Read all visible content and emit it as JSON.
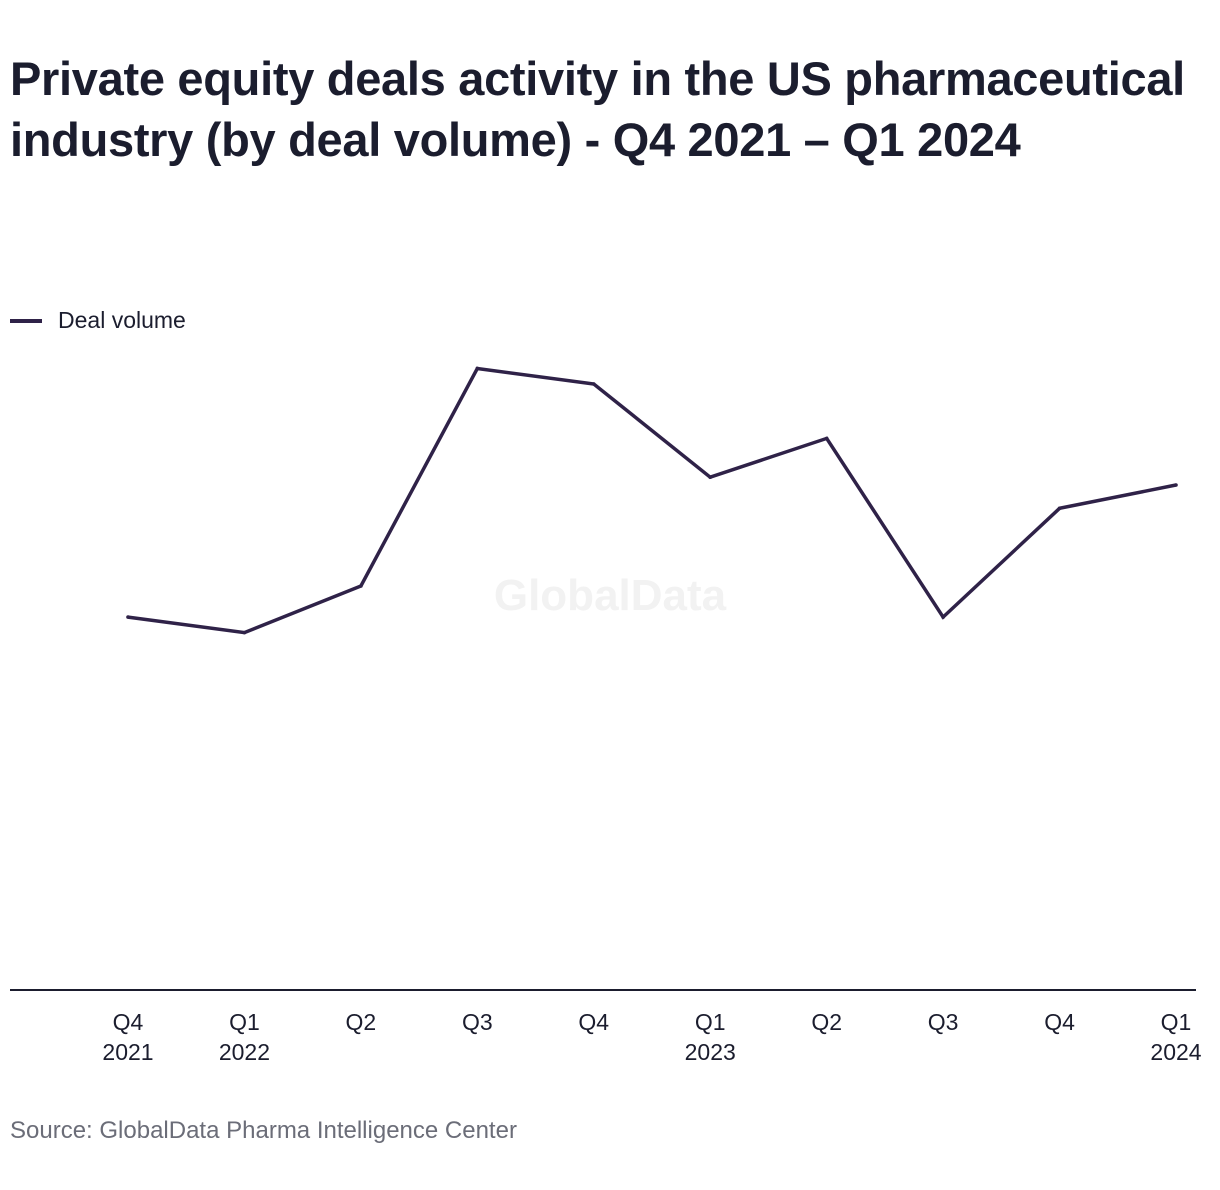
{
  "title": "Private equity deals activity in the US pharmaceutical industry (by deal volume) - Q4 2021 – Q1 2024",
  "legend_label": "Deal volume",
  "watermark": "GlobalData",
  "source": "Source: GlobalData Pharma Intelligence Center",
  "colors": {
    "line": "#2f2248",
    "axis": "#1b1d2e",
    "text": "#1b1d2e",
    "watermark": "#f2f2f2"
  },
  "chart_data": {
    "type": "line",
    "title": "Private equity deals activity in the US pharmaceutical industry (by deal volume) - Q4 2021 – Q1 2024",
    "categories": [
      [
        "Q4",
        "2021"
      ],
      [
        "Q1",
        "2022"
      ],
      [
        "Q2",
        ""
      ],
      [
        "Q3",
        ""
      ],
      [
        "Q4",
        ""
      ],
      [
        "Q1",
        "2023"
      ],
      [
        "Q2",
        ""
      ],
      [
        "Q3",
        ""
      ],
      [
        "Q4",
        ""
      ],
      [
        "Q1",
        "2024"
      ]
    ],
    "series": [
      {
        "name": "Deal volume",
        "values": [
          24,
          23,
          26,
          40,
          39,
          33,
          35.5,
          24,
          31,
          32.5
        ]
      }
    ],
    "ylim": [
      0,
      52
    ],
    "y_axis_visible": false,
    "grid": false,
    "legend_position": "top-left"
  }
}
